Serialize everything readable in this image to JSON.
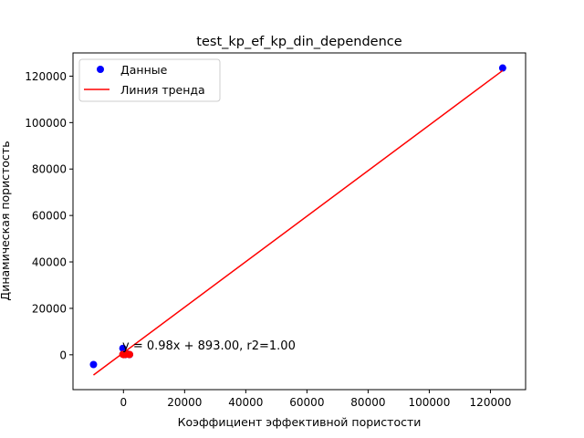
{
  "chart_data": {
    "type": "scatter",
    "title": "test_kp_ef_kp_din_dependence",
    "xlabel": "Коэффициент эффективной пористости",
    "ylabel": "Динамическая пористость",
    "xlim": [
      -16500,
      131500
    ],
    "ylim": [
      -15000,
      130000
    ],
    "xticks": [
      0,
      20000,
      40000,
      60000,
      80000,
      100000,
      120000
    ],
    "yticks": [
      0,
      20000,
      40000,
      60000,
      80000,
      100000,
      120000
    ],
    "grid": false,
    "legend": {
      "position": "top-left",
      "entries": [
        "Данные",
        "Линия тренда"
      ]
    },
    "series": [
      {
        "name": "Данные",
        "kind": "scatter",
        "color": "#0000ff",
        "points": [
          [
            -9800,
            -4200
          ],
          [
            -200,
            2800
          ],
          [
            -100,
            300
          ],
          [
            100,
            100
          ],
          [
            300,
            200
          ],
          [
            600,
            100
          ],
          [
            1500,
            300
          ],
          [
            2000,
            100
          ],
          [
            124000,
            123500
          ]
        ]
      },
      {
        "name": "Линия тренда",
        "kind": "line",
        "color": "#ff0000",
        "line": [
          [
            -9800,
            -8711
          ],
          [
            124000,
            122413
          ]
        ],
        "overlay_points": [
          [
            -200,
            200
          ],
          [
            100,
            100
          ],
          [
            300,
            150
          ],
          [
            600,
            200
          ],
          [
            1500,
            250
          ],
          [
            2000,
            150
          ]
        ]
      }
    ],
    "annotation": "y = 0.98x + 893.00, r2=1.00"
  }
}
